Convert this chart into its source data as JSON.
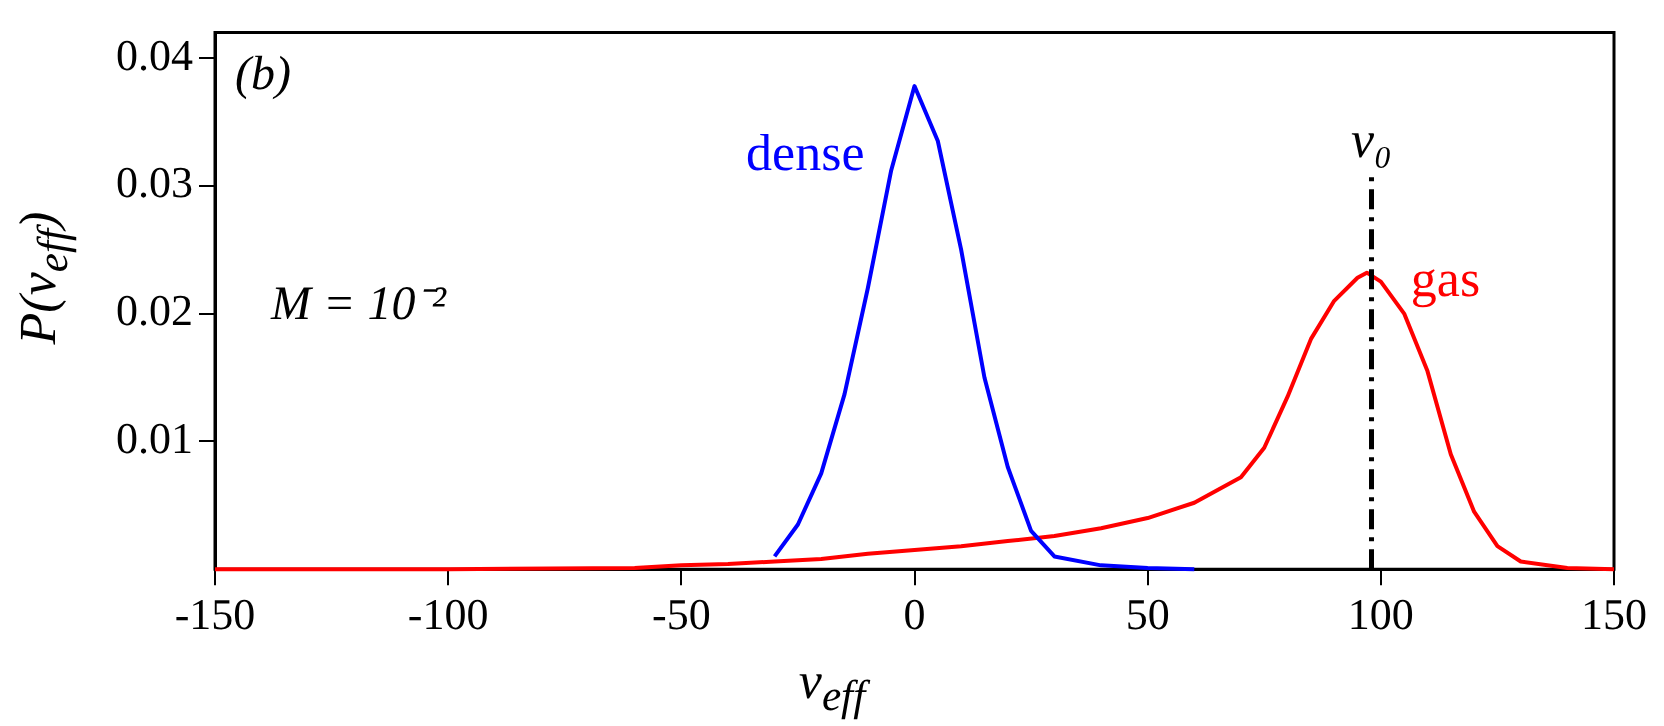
{
  "chart_data": {
    "type": "line",
    "xlabel": "v$_{eff}$",
    "ylabel": "P(v$_{eff}$)",
    "xlim": [
      -150,
      150
    ],
    "xticks": [
      -150,
      -100,
      -50,
      0,
      50,
      100,
      150
    ],
    "ylim": [
      0,
      0.042
    ],
    "yticks": [
      0.01,
      0.02,
      0.03,
      0.04
    ],
    "grid": false,
    "legend": false,
    "marker": "none",
    "line_style": "solid",
    "annotations": [
      "(b)",
      "M = 10⁻²"
    ],
    "ref_lines": [
      {
        "axis": "x",
        "value": 98,
        "label": "v₀",
        "color": "#000000",
        "line_style": "dashdot"
      }
    ],
    "series": [
      {
        "name": "dense",
        "color": "#0000ff",
        "x": [
          -30,
          -25,
          -20,
          -15,
          -10,
          -5,
          0,
          5,
          10,
          15,
          20,
          25,
          30,
          40,
          50,
          60
        ],
        "values": [
          0.001,
          0.0035,
          0.0075,
          0.0137,
          0.022,
          0.0312,
          0.0378,
          0.0335,
          0.025,
          0.015,
          0.008,
          0.003,
          0.001,
          0.0003,
          0.0001,
          0
        ]
      },
      {
        "name": "gas",
        "color": "#ff0000",
        "x": [
          -150,
          -100,
          -60,
          -50,
          -40,
          -30,
          -20,
          -10,
          0,
          10,
          20,
          30,
          40,
          50,
          60,
          70,
          75,
          80,
          85,
          90,
          95,
          97,
          100,
          105,
          110,
          115,
          120,
          125,
          130,
          140,
          150
        ],
        "values": [
          0,
          0,
          0.0001,
          0.0003,
          0.0004,
          0.0006,
          0.0008,
          0.0012,
          0.0015,
          0.0018,
          0.0022,
          0.0026,
          0.0032,
          0.004,
          0.0052,
          0.0072,
          0.0095,
          0.0135,
          0.018,
          0.021,
          0.0228,
          0.0232,
          0.0225,
          0.02,
          0.0155,
          0.009,
          0.0045,
          0.0018,
          0.0006,
          0.0001,
          0
        ]
      }
    ]
  }
}
